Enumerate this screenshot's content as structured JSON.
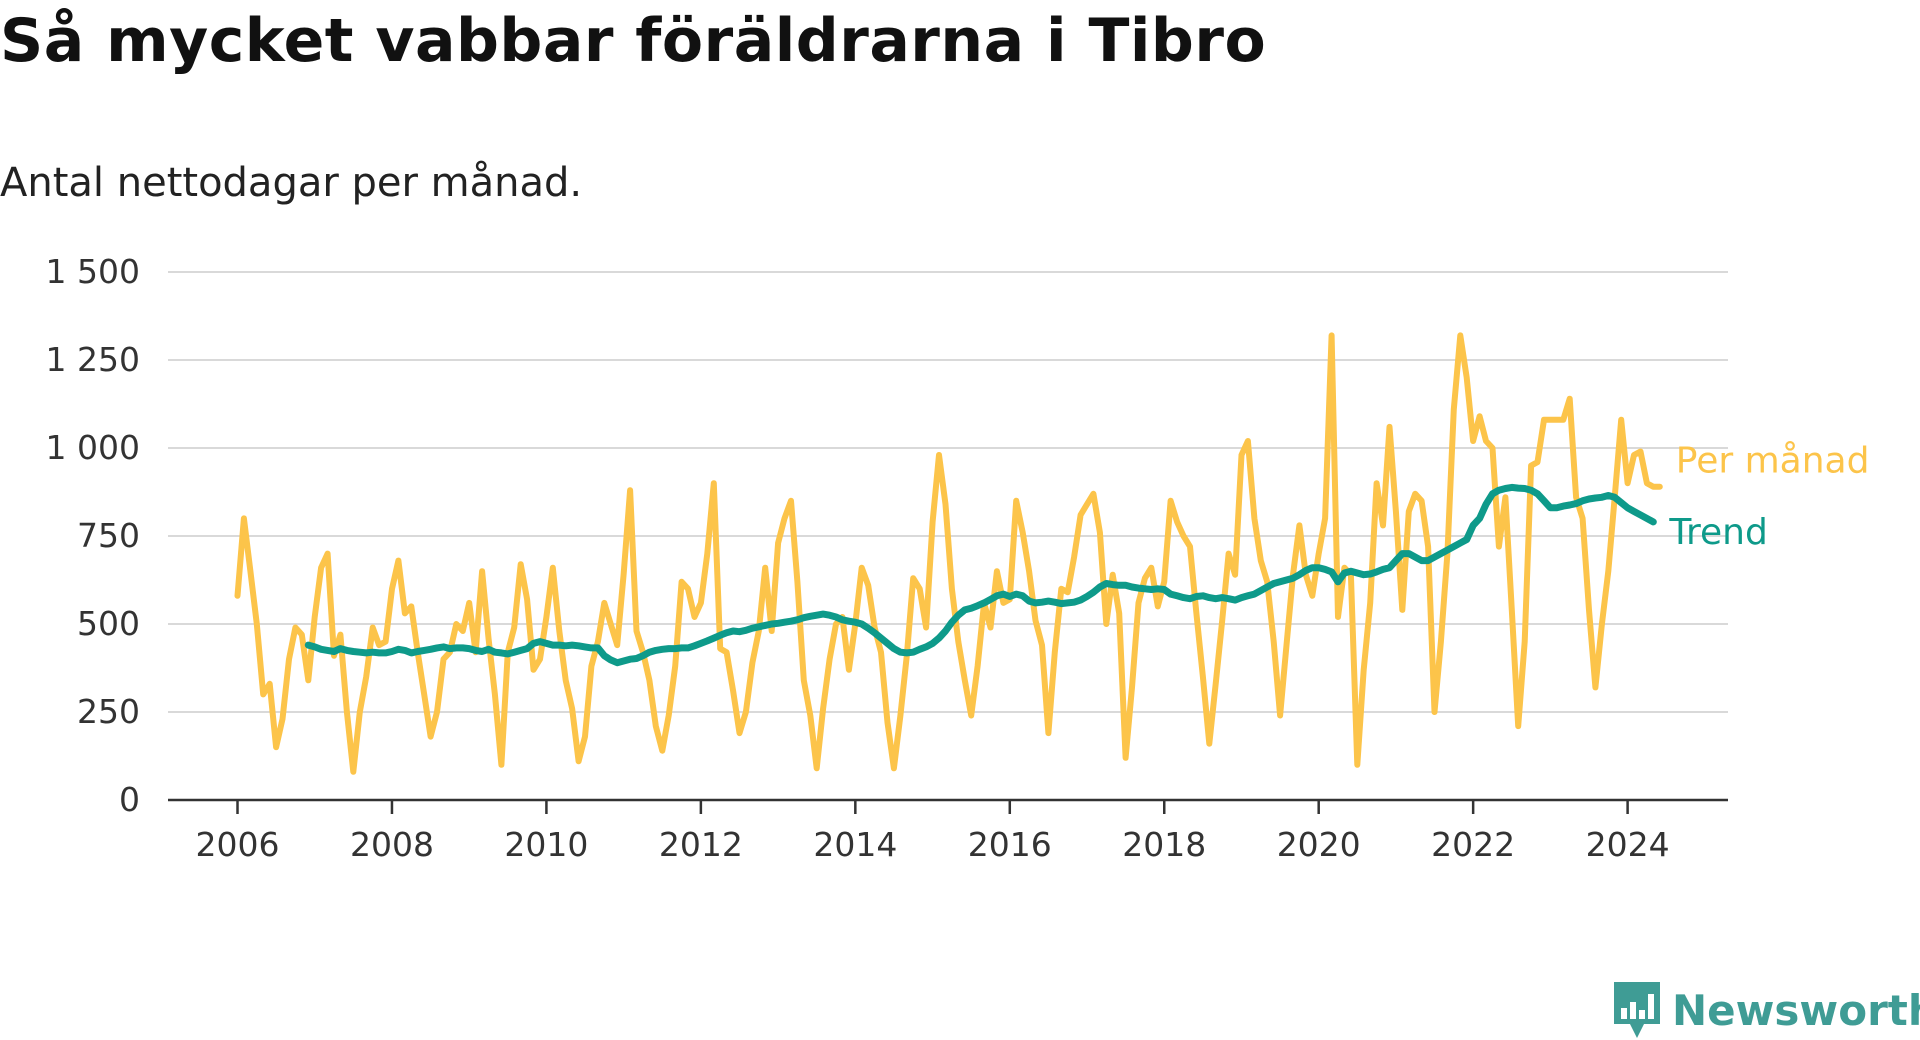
{
  "title": "Så mycket vabbar föräldrarna i Tibro",
  "subtitle": "Antal nettodagar per månad.",
  "brand": {
    "name": "Newsworthy",
    "color": "#3f9c95"
  },
  "chart_data": {
    "type": "line",
    "ylim": [
      0,
      1500
    ],
    "yticks": [
      0,
      250,
      500,
      750,
      1000,
      1250,
      1500
    ],
    "ytick_labels": [
      "0",
      "250",
      "500",
      "750",
      "1 000",
      "1 250",
      "1 500"
    ],
    "xlim": [
      2005.1,
      2025.3
    ],
    "xticks": [
      2006,
      2008,
      2010,
      2012,
      2014,
      2016,
      2018,
      2020,
      2022,
      2024
    ],
    "xtick_labels": [
      "2006",
      "2008",
      "2010",
      "2012",
      "2014",
      "2016",
      "2018",
      "2020",
      "2022",
      "2024"
    ],
    "grid": true,
    "legend": "right-end labels",
    "series": [
      {
        "name": "Per månad",
        "color": "#fcc44a",
        "x": [
          2006.0,
          2006.083,
          2006.167,
          2006.25,
          2006.333,
          2006.417,
          2006.5,
          2006.583,
          2006.667,
          2006.75,
          2006.833,
          2006.917,
          2007.0,
          2007.083,
          2007.167,
          2007.25,
          2007.333,
          2007.417,
          2007.5,
          2007.583,
          2007.667,
          2007.75,
          2007.833,
          2007.917,
          2008.0,
          2008.083,
          2008.167,
          2008.25,
          2008.333,
          2008.417,
          2008.5,
          2008.583,
          2008.667,
          2008.75,
          2008.833,
          2008.917,
          2009.0,
          2009.083,
          2009.167,
          2009.25,
          2009.333,
          2009.417,
          2009.5,
          2009.583,
          2009.667,
          2009.75,
          2009.833,
          2009.917,
          2010.0,
          2010.083,
          2010.167,
          2010.25,
          2010.333,
          2010.417,
          2010.5,
          2010.583,
          2010.667,
          2010.75,
          2010.833,
          2010.917,
          2011.0,
          2011.083,
          2011.167,
          2011.25,
          2011.333,
          2011.417,
          2011.5,
          2011.583,
          2011.667,
          2011.75,
          2011.833,
          2011.917,
          2012.0,
          2012.083,
          2012.167,
          2012.25,
          2012.333,
          2012.417,
          2012.5,
          2012.583,
          2012.667,
          2012.75,
          2012.833,
          2012.917,
          2013.0,
          2013.083,
          2013.167,
          2013.25,
          2013.333,
          2013.417,
          2013.5,
          2013.583,
          2013.667,
          2013.75,
          2013.833,
          2013.917,
          2014.0,
          2014.083,
          2014.167,
          2014.25,
          2014.333,
          2014.417,
          2014.5,
          2014.583,
          2014.667,
          2014.75,
          2014.833,
          2014.917,
          2015.0,
          2015.083,
          2015.167,
          2015.25,
          2015.333,
          2015.417,
          2015.5,
          2015.583,
          2015.667,
          2015.75,
          2015.833,
          2015.917,
          2016.0,
          2016.083,
          2016.167,
          2016.25,
          2016.333,
          2016.417,
          2016.5,
          2016.583,
          2016.667,
          2016.75,
          2016.833,
          2016.917,
          2017.0,
          2017.083,
          2017.167,
          2017.25,
          2017.333,
          2017.417,
          2017.5,
          2017.583,
          2017.667,
          2017.75,
          2017.833,
          2017.917,
          2018.0,
          2018.083,
          2018.167,
          2018.25,
          2018.333,
          2018.417,
          2018.5,
          2018.583,
          2018.667,
          2018.75,
          2018.833,
          2018.917,
          2019.0,
          2019.083,
          2019.167,
          2019.25,
          2019.333,
          2019.417,
          2019.5,
          2019.583,
          2019.667,
          2019.75,
          2019.833,
          2019.917,
          2020.0,
          2020.083,
          2020.167,
          2020.25,
          2020.333,
          2020.417,
          2020.5,
          2020.583,
          2020.667,
          2020.75,
          2020.833,
          2020.917,
          2021.0,
          2021.083,
          2021.167,
          2021.25,
          2021.333,
          2021.417,
          2021.5,
          2021.583,
          2021.667,
          2021.75,
          2021.833,
          2021.917,
          2022.0,
          2022.083,
          2022.167,
          2022.25,
          2022.333,
          2022.417,
          2022.5,
          2022.583,
          2022.667,
          2022.75,
          2022.833,
          2022.917,
          2023.0,
          2023.083,
          2023.167,
          2023.25,
          2023.333,
          2023.417,
          2023.5,
          2023.583,
          2023.667,
          2023.75,
          2023.833,
          2023.917,
          2024.0,
          2024.083,
          2024.167,
          2024.25,
          2024.333,
          2024.417
        ],
        "values": [
          580,
          800,
          650,
          500,
          300,
          330,
          150,
          230,
          400,
          490,
          470,
          340,
          520,
          660,
          700,
          410,
          470,
          250,
          80,
          250,
          350,
          490,
          440,
          450,
          600,
          680,
          530,
          550,
          420,
          300,
          180,
          250,
          400,
          420,
          500,
          480,
          560,
          420,
          650,
          460,
          300,
          100,
          420,
          490,
          670,
          570,
          370,
          400,
          520,
          660,
          480,
          340,
          260,
          110,
          180,
          380,
          450,
          560,
          500,
          440,
          640,
          880,
          480,
          420,
          340,
          210,
          140,
          240,
          380,
          620,
          600,
          520,
          560,
          700,
          900,
          430,
          420,
          310,
          190,
          250,
          390,
          480,
          660,
          480,
          730,
          800,
          850,
          620,
          340,
          240,
          90,
          260,
          400,
          500,
          520,
          370,
          500,
          660,
          610,
          490,
          420,
          220,
          90,
          240,
          410,
          630,
          600,
          490,
          790,
          980,
          840,
          600,
          450,
          340,
          240,
          380,
          560,
          490,
          650,
          560,
          570,
          850,
          760,
          650,
          510,
          440,
          190,
          420,
          600,
          590,
          690,
          810,
          840,
          870,
          760,
          500,
          640,
          530,
          120,
          320,
          560,
          630,
          660,
          550,
          620,
          850,
          790,
          750,
          720,
          530,
          350,
          160,
          330,
          510,
          700,
          640,
          980,
          1020,
          800,
          680,
          620,
          450,
          240,
          440,
          640,
          780,
          640,
          580,
          700,
          800,
          1320,
          520,
          660,
          640,
          100,
          370,
          560,
          900,
          780,
          1060,
          820,
          540,
          820,
          870,
          850,
          720,
          250,
          450,
          700,
          1110,
          1320,
          1200,
          1020,
          1090,
          1020,
          1000,
          720,
          860,
          540,
          210,
          450,
          950,
          960,
          1080,
          1080,
          1080,
          1080,
          1140,
          860,
          800,
          540,
          320,
          500,
          650,
          860,
          1080,
          900,
          980,
          990,
          900,
          890,
          890
        ]
      },
      {
        "name": "Trend",
        "color": "#0e9a8a",
        "x": [
          2006.917,
          2007.0,
          2007.083,
          2007.167,
          2007.25,
          2007.333,
          2007.417,
          2007.5,
          2007.583,
          2007.667,
          2007.75,
          2007.833,
          2007.917,
          2008.0,
          2008.083,
          2008.167,
          2008.25,
          2008.333,
          2008.417,
          2008.5,
          2008.583,
          2008.667,
          2008.75,
          2008.833,
          2008.917,
          2009.0,
          2009.083,
          2009.167,
          2009.25,
          2009.333,
          2009.417,
          2009.5,
          2009.583,
          2009.667,
          2009.75,
          2009.833,
          2009.917,
          2010.0,
          2010.083,
          2010.167,
          2010.25,
          2010.333,
          2010.417,
          2010.5,
          2010.583,
          2010.667,
          2010.75,
          2010.833,
          2010.917,
          2011.0,
          2011.083,
          2011.167,
          2011.25,
          2011.333,
          2011.417,
          2011.5,
          2011.583,
          2011.667,
          2011.75,
          2011.833,
          2011.917,
          2012.0,
          2012.083,
          2012.167,
          2012.25,
          2012.333,
          2012.417,
          2012.5,
          2012.583,
          2012.667,
          2012.75,
          2012.833,
          2012.917,
          2013.0,
          2013.083,
          2013.167,
          2013.25,
          2013.333,
          2013.417,
          2013.5,
          2013.583,
          2013.667,
          2013.75,
          2013.833,
          2013.917,
          2014.0,
          2014.083,
          2014.167,
          2014.25,
          2014.333,
          2014.417,
          2014.5,
          2014.583,
          2014.667,
          2014.75,
          2014.833,
          2014.917,
          2015.0,
          2015.083,
          2015.167,
          2015.25,
          2015.333,
          2015.417,
          2015.5,
          2015.583,
          2015.667,
          2015.75,
          2015.833,
          2015.917,
          2016.0,
          2016.083,
          2016.167,
          2016.25,
          2016.333,
          2016.417,
          2016.5,
          2016.583,
          2016.667,
          2016.75,
          2016.833,
          2016.917,
          2017.0,
          2017.083,
          2017.167,
          2017.25,
          2017.333,
          2017.417,
          2017.5,
          2017.583,
          2017.667,
          2017.75,
          2017.833,
          2017.917,
          2018.0,
          2018.083,
          2018.167,
          2018.25,
          2018.333,
          2018.417,
          2018.5,
          2018.583,
          2018.667,
          2018.75,
          2018.833,
          2018.917,
          2019.0,
          2019.083,
          2019.167,
          2019.25,
          2019.333,
          2019.417,
          2019.5,
          2019.583,
          2019.667,
          2019.75,
          2019.833,
          2019.917,
          2020.0,
          2020.083,
          2020.167,
          2020.25,
          2020.333,
          2020.417,
          2020.5,
          2020.583,
          2020.667,
          2020.75,
          2020.833,
          2020.917,
          2021.0,
          2021.083,
          2021.167,
          2021.25,
          2021.333,
          2021.417,
          2021.5,
          2021.583,
          2021.667,
          2021.75,
          2021.833,
          2021.917,
          2022.0,
          2022.083,
          2022.167,
          2022.25,
          2022.333,
          2022.417,
          2022.5,
          2022.583,
          2022.667,
          2022.75,
          2022.833,
          2022.917,
          2023.0,
          2023.083,
          2023.167,
          2023.25,
          2023.333,
          2023.417,
          2023.5,
          2023.583,
          2023.667,
          2023.75,
          2023.833,
          2023.917,
          2024.0,
          2024.083,
          2024.167,
          2024.25,
          2024.333
        ],
        "values": [
          440,
          435,
          428,
          425,
          422,
          430,
          425,
          422,
          420,
          418,
          420,
          418,
          418,
          422,
          428,
          425,
          418,
          422,
          425,
          428,
          432,
          435,
          430,
          432,
          432,
          430,
          425,
          422,
          428,
          420,
          418,
          415,
          420,
          425,
          430,
          445,
          450,
          445,
          440,
          440,
          438,
          440,
          438,
          435,
          432,
          432,
          410,
          398,
          390,
          395,
          400,
          402,
          410,
          420,
          425,
          428,
          430,
          430,
          432,
          432,
          438,
          445,
          452,
          460,
          468,
          475,
          480,
          478,
          482,
          488,
          492,
          496,
          500,
          502,
          505,
          508,
          512,
          518,
          522,
          525,
          528,
          525,
          520,
          512,
          508,
          505,
          500,
          488,
          475,
          460,
          445,
          430,
          420,
          418,
          420,
          428,
          435,
          445,
          460,
          480,
          505,
          525,
          540,
          545,
          552,
          560,
          570,
          580,
          585,
          578,
          585,
          580,
          565,
          560,
          562,
          565,
          562,
          558,
          560,
          562,
          568,
          578,
          590,
          605,
          615,
          612,
          610,
          610,
          605,
          602,
          600,
          598,
          600,
          598,
          585,
          580,
          575,
          572,
          578,
          580,
          575,
          572,
          575,
          572,
          568,
          575,
          580,
          585,
          595,
          605,
          615,
          620,
          625,
          630,
          640,
          652,
          660,
          660,
          655,
          648,
          620,
          645,
          650,
          645,
          640,
          642,
          648,
          655,
          660,
          680,
          700,
          700,
          690,
          680,
          680,
          690,
          700,
          710,
          720,
          730,
          740,
          780,
          800,
          840,
          870,
          880,
          885,
          888,
          886,
          885,
          880,
          870,
          850,
          830,
          830,
          835,
          838,
          842,
          850,
          855,
          858,
          860,
          865,
          860,
          845,
          830,
          820,
          810,
          800,
          790
        ]
      }
    ]
  }
}
